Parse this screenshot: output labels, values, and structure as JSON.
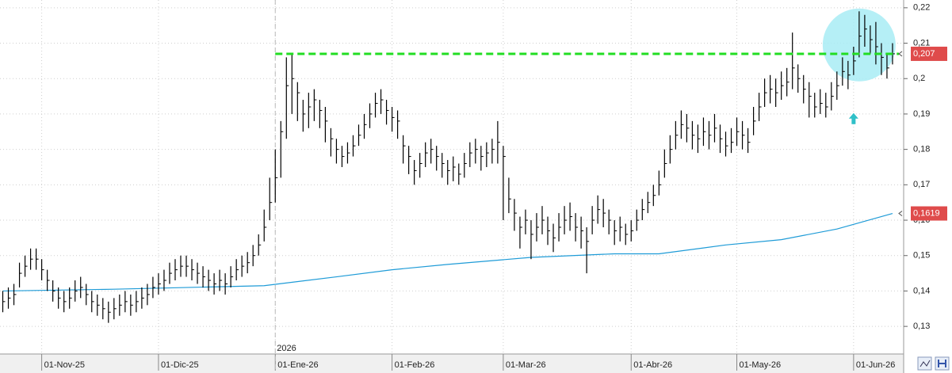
{
  "chart_data": {
    "type": "ohlc",
    "ylim": [
      0.1222,
      0.2222
    ],
    "yticks": [
      {
        "value": 0.13,
        "label": "0,13"
      },
      {
        "value": 0.14,
        "label": "0,14"
      },
      {
        "value": 0.15,
        "label": "0,15"
      },
      {
        "value": 0.16,
        "label": "0,16"
      },
      {
        "value": 0.17,
        "label": "0,17"
      },
      {
        "value": 0.18,
        "label": "0,18"
      },
      {
        "value": 0.19,
        "label": "0,19"
      },
      {
        "value": 0.2,
        "label": "0,2"
      },
      {
        "value": 0.21,
        "label": "0,21"
      },
      {
        "value": 0.22,
        "label": "0,22"
      }
    ],
    "xlim": [
      -0.5,
      162
    ],
    "xticks": [
      {
        "value": 7,
        "label": "01-Nov-25"
      },
      {
        "value": 28,
        "label": "01-Dic-25"
      },
      {
        "value": 49,
        "label": "01-Ene-26"
      },
      {
        "value": 70,
        "label": "01-Feb-26"
      },
      {
        "value": 90,
        "label": "01-Mar-26"
      },
      {
        "value": 113,
        "label": "01-Abr-26"
      },
      {
        "value": 132,
        "label": "01-May-26"
      },
      {
        "value": 153,
        "label": "01-Jun-26"
      }
    ],
    "grid": true,
    "color": "#000000",
    "high": [
      0.14,
      0.141,
      0.142,
      0.148,
      0.15,
      0.152,
      0.152,
      0.149,
      0.146,
      0.143,
      0.141,
      0.14,
      0.141,
      0.143,
      0.144,
      0.142,
      0.14,
      0.139,
      0.138,
      0.137,
      0.138,
      0.139,
      0.14,
      0.139,
      0.14,
      0.141,
      0.142,
      0.144,
      0.145,
      0.146,
      0.148,
      0.149,
      0.15,
      0.15,
      0.149,
      0.148,
      0.147,
      0.146,
      0.145,
      0.146,
      0.145,
      0.147,
      0.149,
      0.15,
      0.151,
      0.153,
      0.156,
      0.163,
      0.172,
      0.18,
      0.188,
      0.206,
      0.207,
      0.199,
      0.194,
      0.196,
      0.197,
      0.194,
      0.192,
      0.186,
      0.183,
      0.181,
      0.182,
      0.184,
      0.187,
      0.19,
      0.193,
      0.196,
      0.197,
      0.194,
      0.192,
      0.191,
      0.184,
      0.181,
      0.177,
      0.179,
      0.182,
      0.183,
      0.181,
      0.179,
      0.177,
      0.178,
      0.176,
      0.179,
      0.182,
      0.183,
      0.181,
      0.182,
      0.183,
      0.188,
      0.181,
      0.172,
      0.166,
      0.161,
      0.163,
      0.16,
      0.162,
      0.164,
      0.161,
      0.159,
      0.162,
      0.164,
      0.165,
      0.162,
      0.161,
      0.158,
      0.164,
      0.167,
      0.166,
      0.163,
      0.16,
      0.161,
      0.159,
      0.16,
      0.163,
      0.166,
      0.168,
      0.17,
      0.174,
      0.18,
      0.184,
      0.188,
      0.191,
      0.19,
      0.188,
      0.187,
      0.189,
      0.188,
      0.19,
      0.187,
      0.185,
      0.186,
      0.189,
      0.188,
      0.186,
      0.192,
      0.196,
      0.2,
      0.201,
      0.2,
      0.202,
      0.203,
      0.213,
      0.204,
      0.201,
      0.199,
      0.196,
      0.197,
      0.196,
      0.199,
      0.202,
      0.206,
      0.205,
      0.209,
      0.219,
      0.218,
      0.215,
      0.216,
      0.21,
      0.207,
      0.21
    ],
    "low": [
      0.134,
      0.135,
      0.136,
      0.141,
      0.144,
      0.146,
      0.146,
      0.143,
      0.14,
      0.137,
      0.135,
      0.134,
      0.135,
      0.137,
      0.138,
      0.136,
      0.134,
      0.133,
      0.132,
      0.131,
      0.132,
      0.133,
      0.134,
      0.133,
      0.134,
      0.135,
      0.136,
      0.138,
      0.139,
      0.14,
      0.142,
      0.143,
      0.144,
      0.144,
      0.143,
      0.142,
      0.141,
      0.14,
      0.139,
      0.14,
      0.139,
      0.141,
      0.143,
      0.144,
      0.145,
      0.147,
      0.15,
      0.154,
      0.16,
      0.165,
      0.172,
      0.183,
      0.19,
      0.188,
      0.185,
      0.186,
      0.188,
      0.186,
      0.182,
      0.178,
      0.176,
      0.175,
      0.176,
      0.178,
      0.181,
      0.183,
      0.186,
      0.189,
      0.19,
      0.187,
      0.185,
      0.183,
      0.176,
      0.173,
      0.17,
      0.172,
      0.175,
      0.176,
      0.174,
      0.172,
      0.17,
      0.171,
      0.17,
      0.172,
      0.175,
      0.176,
      0.174,
      0.175,
      0.176,
      0.176,
      0.16,
      0.162,
      0.157,
      0.152,
      0.156,
      0.149,
      0.154,
      0.156,
      0.153,
      0.151,
      0.154,
      0.156,
      0.157,
      0.154,
      0.152,
      0.145,
      0.156,
      0.159,
      0.158,
      0.156,
      0.153,
      0.154,
      0.153,
      0.154,
      0.157,
      0.16,
      0.162,
      0.164,
      0.167,
      0.172,
      0.176,
      0.18,
      0.183,
      0.182,
      0.18,
      0.179,
      0.181,
      0.18,
      0.182,
      0.179,
      0.178,
      0.179,
      0.181,
      0.18,
      0.179,
      0.184,
      0.188,
      0.192,
      0.193,
      0.192,
      0.194,
      0.195,
      0.197,
      0.196,
      0.193,
      0.189,
      0.189,
      0.19,
      0.189,
      0.191,
      0.194,
      0.198,
      0.197,
      0.201,
      0.206,
      0.209,
      0.207,
      0.204,
      0.201,
      0.2,
      0.204
    ],
    "close": [
      0.137,
      0.138,
      0.139,
      0.145,
      0.147,
      0.149,
      0.149,
      0.146,
      0.143,
      0.14,
      0.138,
      0.137,
      0.138,
      0.14,
      0.141,
      0.139,
      0.137,
      0.136,
      0.135,
      0.134,
      0.135,
      0.136,
      0.137,
      0.136,
      0.137,
      0.138,
      0.139,
      0.141,
      0.142,
      0.143,
      0.145,
      0.146,
      0.147,
      0.147,
      0.146,
      0.145,
      0.144,
      0.143,
      0.142,
      0.143,
      0.142,
      0.144,
      0.146,
      0.147,
      0.148,
      0.15,
      0.153,
      0.158,
      0.165,
      0.172,
      0.185,
      0.198,
      0.2,
      0.196,
      0.19,
      0.192,
      0.194,
      0.191,
      0.188,
      0.183,
      0.18,
      0.178,
      0.179,
      0.181,
      0.184,
      0.187,
      0.19,
      0.193,
      0.194,
      0.191,
      0.189,
      0.188,
      0.181,
      0.178,
      0.174,
      0.176,
      0.179,
      0.18,
      0.178,
      0.176,
      0.174,
      0.175,
      0.173,
      0.176,
      0.179,
      0.18,
      0.178,
      0.179,
      0.18,
      0.182,
      0.178,
      0.166,
      0.162,
      0.158,
      0.16,
      0.156,
      0.158,
      0.16,
      0.157,
      0.155,
      0.158,
      0.16,
      0.161,
      0.158,
      0.157,
      0.154,
      0.16,
      0.163,
      0.162,
      0.16,
      0.157,
      0.158,
      0.156,
      0.157,
      0.16,
      0.163,
      0.165,
      0.167,
      0.17,
      0.176,
      0.18,
      0.184,
      0.187,
      0.186,
      0.184,
      0.183,
      0.185,
      0.184,
      0.186,
      0.183,
      0.181,
      0.182,
      0.185,
      0.184,
      0.182,
      0.188,
      0.192,
      0.196,
      0.197,
      0.196,
      0.198,
      0.199,
      0.203,
      0.2,
      0.197,
      0.195,
      0.192,
      0.193,
      0.192,
      0.195,
      0.198,
      0.202,
      0.201,
      0.205,
      0.212,
      0.214,
      0.211,
      0.209,
      0.206,
      0.203,
      0.207
    ],
    "moving_average": {
      "color": "#1e9bd7",
      "x": [
        0,
        20,
        47,
        60,
        70,
        80,
        95,
        110,
        118,
        130,
        140,
        150,
        160
      ],
      "values": [
        0.14,
        0.1405,
        0.1415,
        0.144,
        0.146,
        0.1475,
        0.1495,
        0.1505,
        0.1505,
        0.153,
        0.1545,
        0.1575,
        0.1619
      ]
    },
    "levels": [
      {
        "value": 0.207,
        "label": "0,207",
        "color": "#df4b4b",
        "line_color": "#22dd22",
        "from_x": 49
      },
      {
        "value": 0.1619,
        "label": "0,1619",
        "color": "#df4b4b"
      }
    ],
    "year_marker": {
      "x": 49,
      "label": "2026"
    },
    "highlight": {
      "x": 154,
      "y": 0.2095,
      "color": "#a8ecf5"
    },
    "arrow": {
      "x": 153,
      "y": 0.1887,
      "color": "#2fc0c8"
    }
  }
}
